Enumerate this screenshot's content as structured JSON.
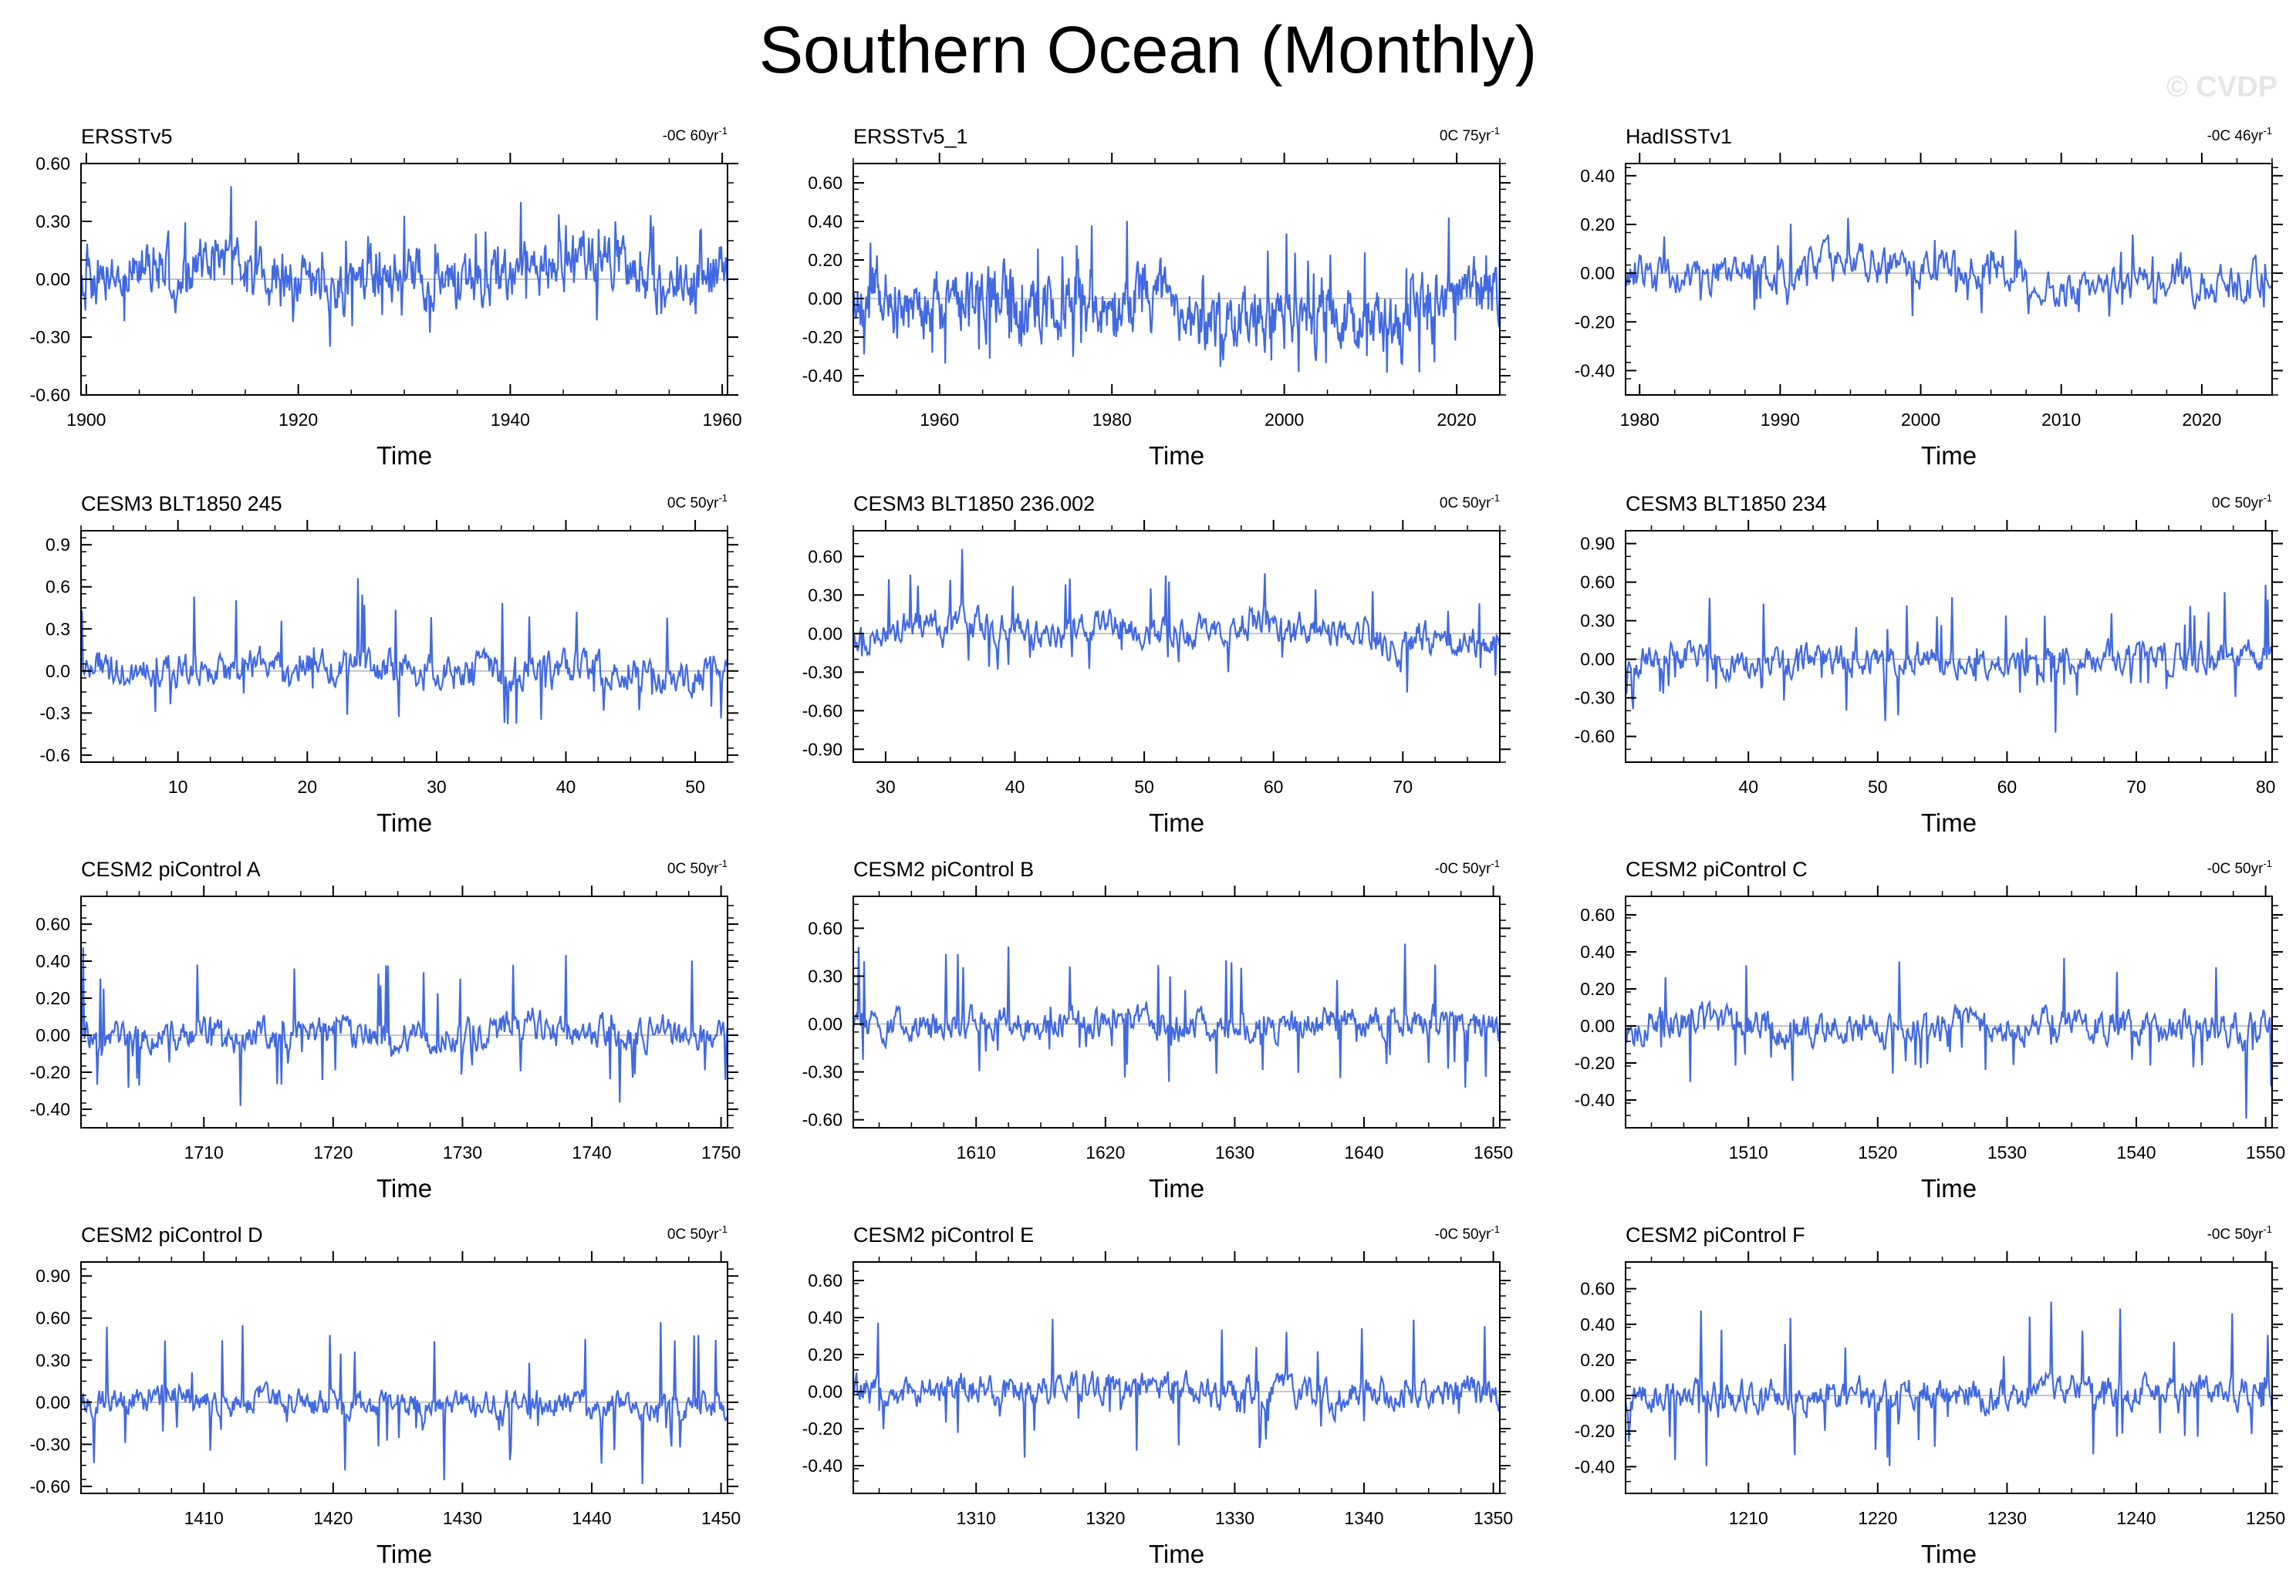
{
  "title": "Southern Ocean (Monthly)",
  "watermark": "© CVDP",
  "colors": {
    "line": "#4169E1",
    "axis": "#000000",
    "zero": "#b4b4b4"
  },
  "chart_data": [
    {
      "type": "line",
      "name": "ERSSTv5",
      "trend": "-0C 60yr",
      "trend_unit": "-1",
      "xlabel": "Time",
      "xlim": [
        1899.5,
        1960.5
      ],
      "ylim": [
        -0.6,
        0.6
      ],
      "xticks": [
        1900,
        1920,
        1940,
        1960
      ],
      "yticks": [
        "0.60",
        "0.30",
        "0.00",
        "-0.30",
        "-0.60"
      ],
      "yvals": [
        0.6,
        0.3,
        0.0,
        -0.3,
        -0.6
      ],
      "seed": 11,
      "amp": 0.11,
      "spike": 0.25,
      "freq": 8,
      "low": 0.1
    },
    {
      "type": "line",
      "name": "ERSSTv5_1",
      "trend": "0C 75yr",
      "trend_unit": "-1",
      "xlabel": "Time",
      "xlim": [
        1950,
        2025
      ],
      "ylim": [
        -0.5,
        0.7
      ],
      "xticks": [
        1960,
        1980,
        2000,
        2020
      ],
      "yticks": [
        "0.60",
        "0.40",
        "0.20",
        "0.00",
        "-0.20",
        "-0.40"
      ],
      "yvals": [
        0.6,
        0.4,
        0.2,
        0.0,
        -0.2,
        -0.4
      ],
      "seed": 23,
      "amp": 0.12,
      "spike": 0.3,
      "freq": 8,
      "low": 0.12
    },
    {
      "type": "line",
      "name": "HadISSTv1",
      "trend": "-0C 46yr",
      "trend_unit": "-1",
      "xlabel": "Time",
      "xlim": [
        1979,
        2025
      ],
      "ylim": [
        -0.5,
        0.45
      ],
      "xticks": [
        1980,
        1990,
        2000,
        2010,
        2020
      ],
      "yticks": [
        "0.40",
        "0.20",
        "0.00",
        "-0.20",
        "-0.40"
      ],
      "yvals": [
        0.4,
        0.2,
        0.0,
        -0.2,
        -0.4
      ],
      "seed": 37,
      "amp": 0.06,
      "spike": 0.2,
      "freq": 4,
      "low": 0.05
    },
    {
      "type": "line",
      "name": "CESM3 BLT1850 245",
      "trend": "0C 50yr",
      "trend_unit": "-1",
      "xlabel": "Time",
      "xlim": [
        2.5,
        52.5
      ],
      "ylim": [
        -0.65,
        1.0
      ],
      "xticks": [
        10,
        20,
        30,
        40,
        50
      ],
      "yticks": [
        "0.9",
        "0.6",
        "0.3",
        "0.0",
        "-0.3",
        "-0.6"
      ],
      "yvals": [
        0.9,
        0.6,
        0.3,
        0.0,
        -0.3,
        -0.6
      ],
      "seed": 41,
      "amp": 0.1,
      "spike": 0.55,
      "freq": 5,
      "low": 0.05
    },
    {
      "type": "line",
      "name": "CESM3 BLT1850 236.002",
      "trend": "0C 50yr",
      "trend_unit": "-1",
      "xlabel": "Time",
      "xlim": [
        27.5,
        77.5
      ],
      "ylim": [
        -1.0,
        0.8
      ],
      "xticks": [
        30,
        40,
        50,
        60,
        70
      ],
      "yticks": [
        "0.60",
        "0.30",
        "0.00",
        "-0.30",
        "-0.60",
        "-0.90"
      ],
      "yvals": [
        0.6,
        0.3,
        0.0,
        -0.3,
        -0.6,
        -0.9
      ],
      "seed": 53,
      "amp": 0.1,
      "spike": 0.45,
      "freq": 5,
      "low": 0.1
    },
    {
      "type": "line",
      "name": "CESM3 BLT1850 234",
      "trend": "0C 50yr",
      "trend_unit": "-1",
      "xlabel": "Time",
      "xlim": [
        30.5,
        80.5
      ],
      "ylim": [
        -0.8,
        1.0
      ],
      "xticks": [
        40,
        50,
        60,
        70,
        80
      ],
      "yticks": [
        "0.90",
        "0.60",
        "0.30",
        "0.00",
        "-0.30",
        "-0.60"
      ],
      "yvals": [
        0.9,
        0.6,
        0.3,
        0.0,
        -0.3,
        -0.6
      ],
      "seed": 67,
      "amp": 0.09,
      "spike": 0.5,
      "freq": 5,
      "low": 0.04
    },
    {
      "type": "line",
      "name": "CESM2 piControl A",
      "trend": "0C 50yr",
      "trend_unit": "-1",
      "xlabel": "Time",
      "xlim": [
        1700.5,
        1750.5
      ],
      "ylim": [
        -0.5,
        0.75
      ],
      "xticks": [
        1710,
        1720,
        1730,
        1740,
        1750
      ],
      "yticks": [
        "0.60",
        "0.40",
        "0.20",
        "0.00",
        "-0.20",
        "-0.40"
      ],
      "yvals": [
        0.6,
        0.4,
        0.2,
        0.0,
        -0.2,
        -0.4
      ],
      "seed": 71,
      "amp": 0.07,
      "spike": 0.45,
      "freq": 5,
      "low": 0.03
    },
    {
      "type": "line",
      "name": "CESM2 piControl B",
      "trend": "-0C 50yr",
      "trend_unit": "-1",
      "xlabel": "Time",
      "xlim": [
        1600.5,
        1650.5
      ],
      "ylim": [
        -0.65,
        0.8
      ],
      "xticks": [
        1610,
        1620,
        1630,
        1640,
        1650
      ],
      "yticks": [
        "0.60",
        "0.30",
        "0.00",
        "-0.30",
        "-0.60"
      ],
      "yvals": [
        0.6,
        0.3,
        0.0,
        -0.3,
        -0.6
      ],
      "seed": 83,
      "amp": 0.08,
      "spike": 0.45,
      "freq": 5,
      "low": 0.03
    },
    {
      "type": "line",
      "name": "CESM2 piControl C",
      "trend": "-0C 50yr",
      "trend_unit": "-1",
      "xlabel": "Time",
      "xlim": [
        1500.5,
        1550.5
      ],
      "ylim": [
        -0.55,
        0.7
      ],
      "xticks": [
        1510,
        1520,
        1530,
        1540,
        1550
      ],
      "yticks": [
        "0.60",
        "0.40",
        "0.20",
        "0.00",
        "-0.20",
        "-0.40"
      ],
      "yvals": [
        0.6,
        0.4,
        0.2,
        0.0,
        -0.2,
        -0.4
      ],
      "seed": 97,
      "amp": 0.07,
      "spike": 0.4,
      "freq": 5,
      "low": 0.03
    },
    {
      "type": "line",
      "name": "CESM2 piControl D",
      "trend": "0C 50yr",
      "trend_unit": "-1",
      "xlabel": "Time",
      "xlim": [
        1400.5,
        1450.5
      ],
      "ylim": [
        -0.65,
        1.0
      ],
      "xticks": [
        1410,
        1420,
        1430,
        1440,
        1450
      ],
      "yticks": [
        "0.90",
        "0.60",
        "0.30",
        "0.00",
        "-0.30",
        "-0.60"
      ],
      "yvals": [
        0.9,
        0.6,
        0.3,
        0.0,
        -0.3,
        -0.6
      ],
      "seed": 101,
      "amp": 0.08,
      "spike": 0.55,
      "freq": 5,
      "low": 0.04
    },
    {
      "type": "line",
      "name": "CESM2 piControl E",
      "trend": "-0C 50yr",
      "trend_unit": "-1",
      "xlabel": "Time",
      "xlim": [
        1300.5,
        1350.5
      ],
      "ylim": [
        -0.55,
        0.7
      ],
      "xticks": [
        1310,
        1320,
        1330,
        1340,
        1350
      ],
      "yticks": [
        "0.60",
        "0.40",
        "0.20",
        "0.00",
        "-0.20",
        "-0.40"
      ],
      "yvals": [
        0.6,
        0.4,
        0.2,
        0.0,
        -0.2,
        -0.4
      ],
      "seed": 113,
      "amp": 0.07,
      "spike": 0.42,
      "freq": 5,
      "low": 0.03
    },
    {
      "type": "line",
      "name": "CESM2 piControl F",
      "trend": "-0C 50yr",
      "trend_unit": "-1",
      "xlabel": "Time",
      "xlim": [
        1200.5,
        1250.5
      ],
      "ylim": [
        -0.55,
        0.75
      ],
      "xticks": [
        1210,
        1220,
        1230,
        1240,
        1250
      ],
      "yticks": [
        "0.60",
        "0.40",
        "0.20",
        "0.00",
        "-0.20",
        "-0.40"
      ],
      "yvals": [
        0.6,
        0.4,
        0.2,
        0.0,
        -0.2,
        -0.4
      ],
      "seed": 127,
      "amp": 0.07,
      "spike": 0.45,
      "freq": 5,
      "low": 0.03
    }
  ]
}
